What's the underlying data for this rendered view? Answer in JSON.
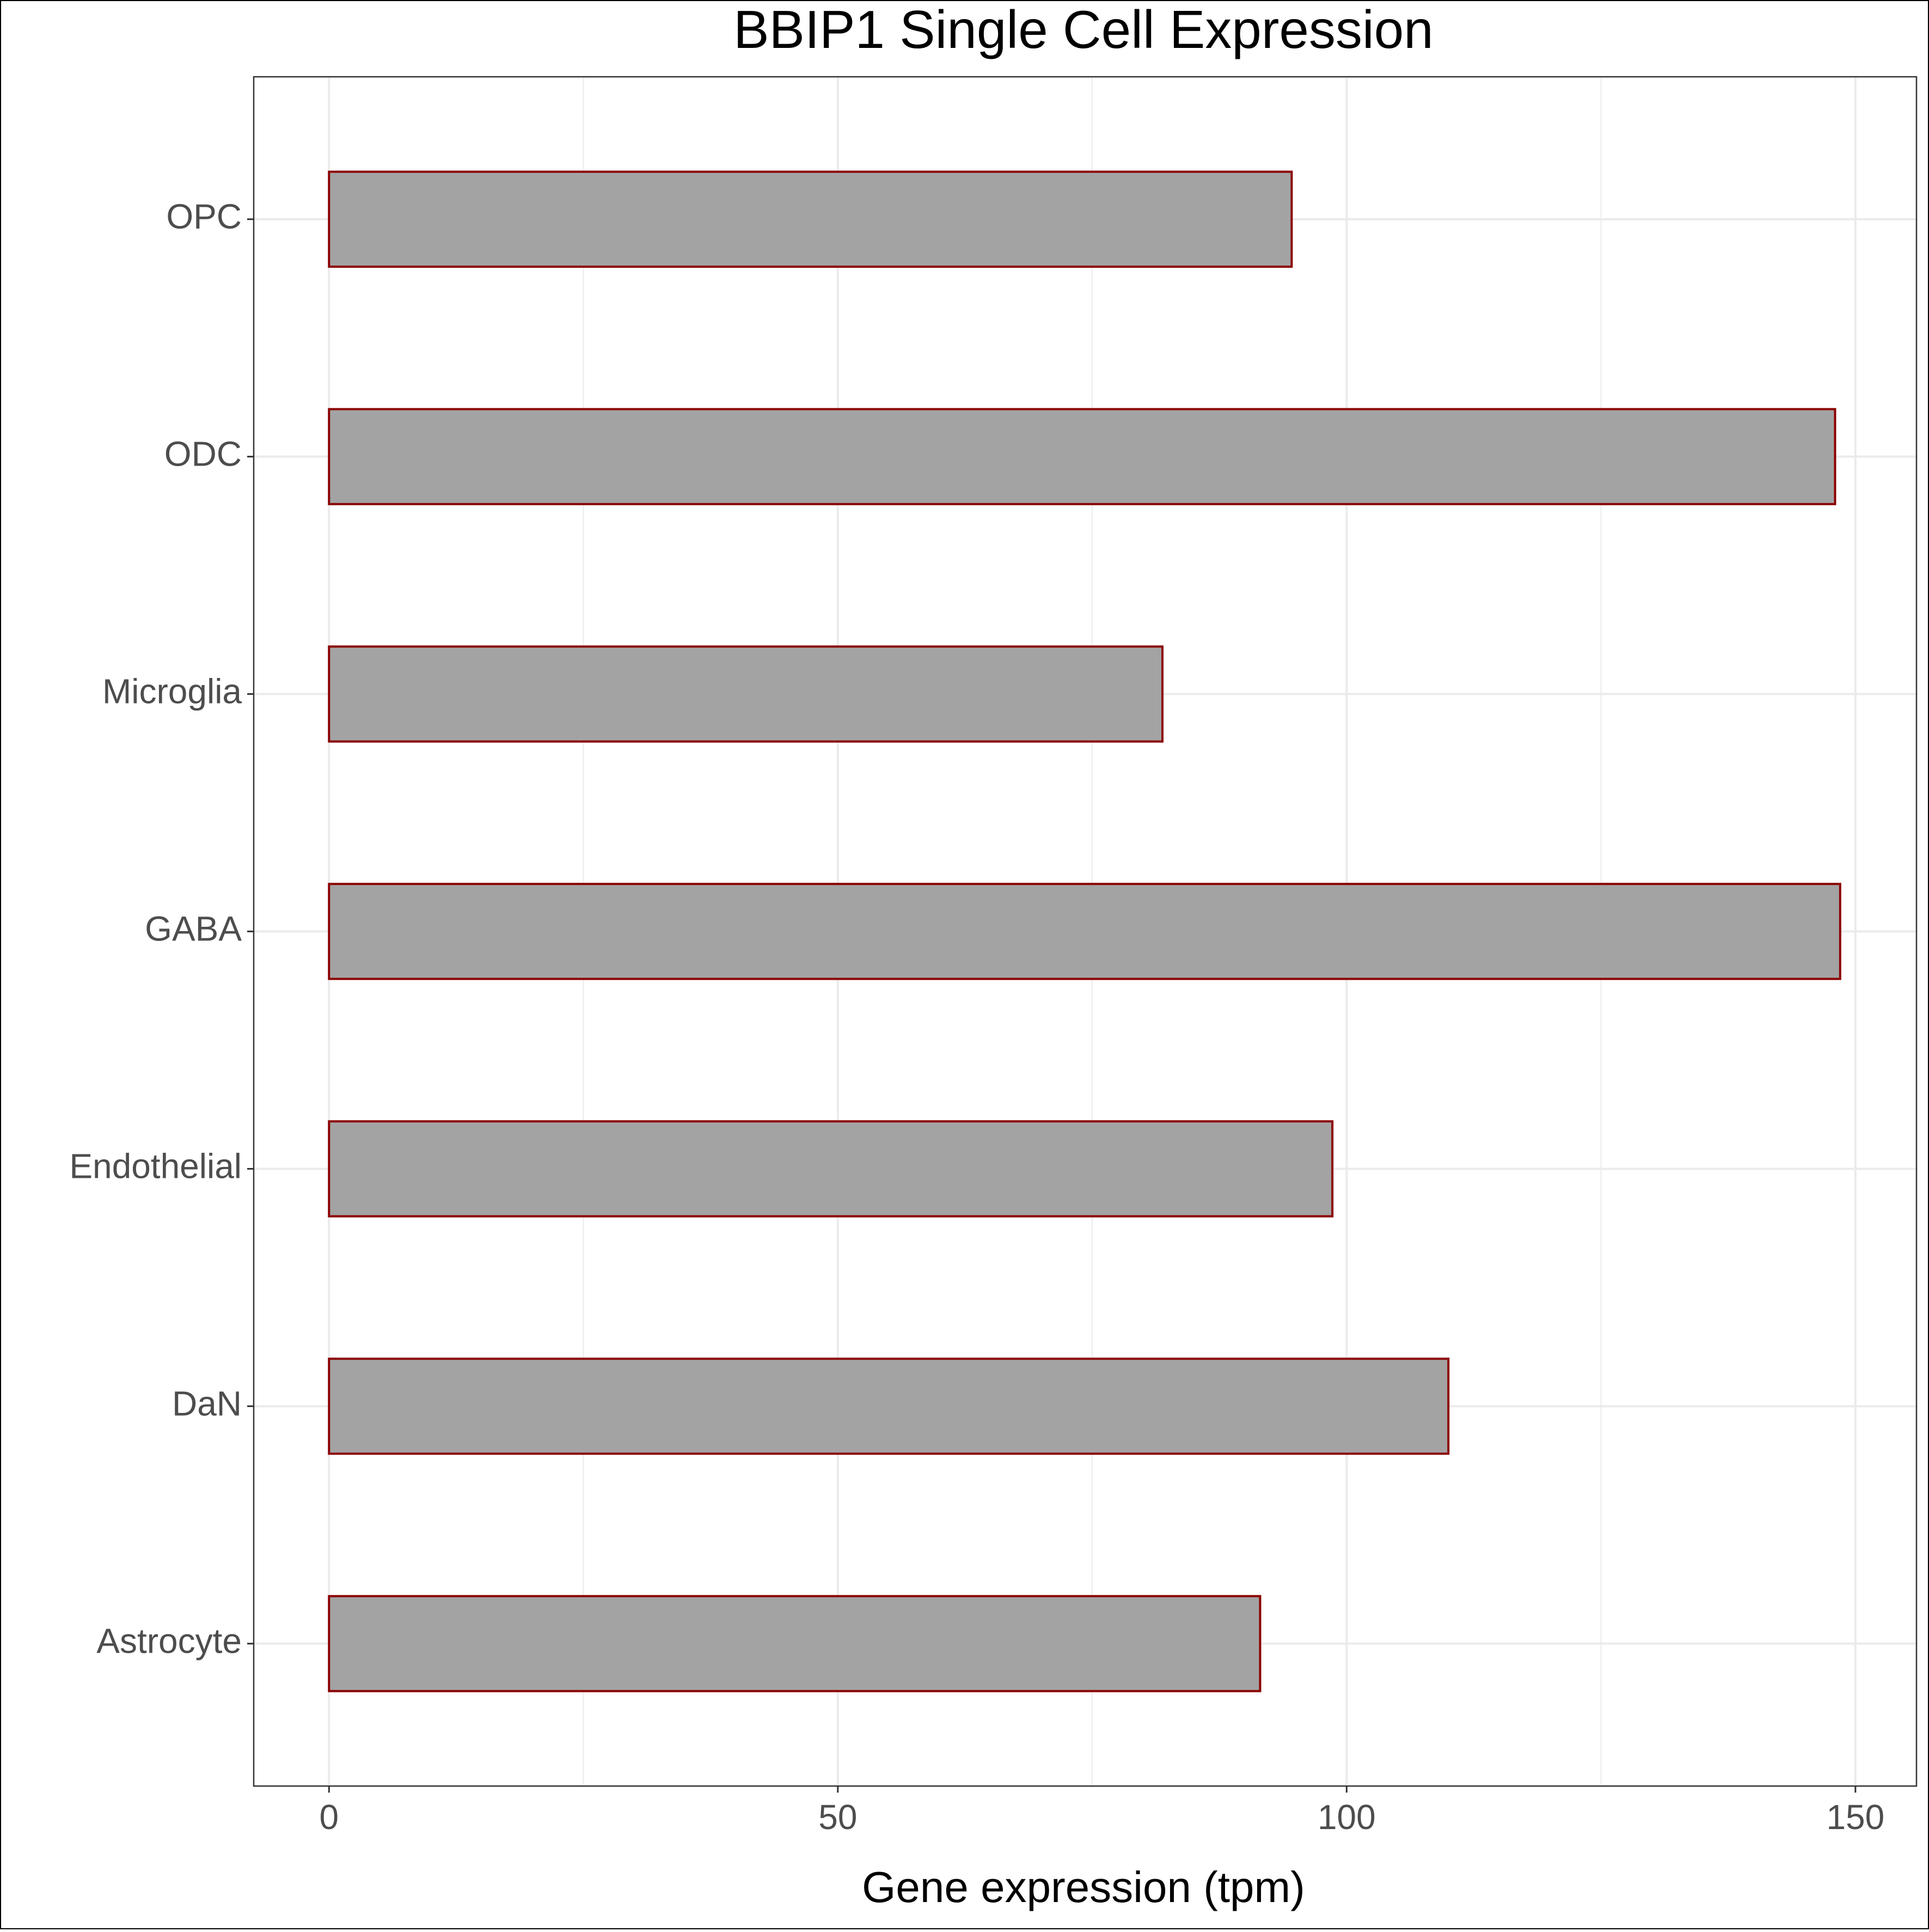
{
  "chart_data": {
    "type": "bar",
    "orientation": "horizontal",
    "title": "BBIP1 Single Cell Expression",
    "xlabel": "Gene expression (tpm)",
    "ylabel": "",
    "categories": [
      "Astrocyte",
      "DaN",
      "Endothelial",
      "GABA",
      "Microglia",
      "ODC",
      "OPC"
    ],
    "values": [
      91.5,
      110.0,
      98.6,
      148.5,
      81.9,
      148.0,
      94.6
    ],
    "xlim": [
      -7.4,
      156.0
    ],
    "xticks": [
      0,
      50,
      100,
      150
    ],
    "xtick_labels": [
      "0",
      "50",
      "100",
      "150"
    ],
    "grid": true,
    "legend": "none",
    "colors": {
      "bar_fill": "#a3a3a3",
      "bar_edge": "#8b0000",
      "grid": "#ebebeb",
      "panel_border": "#333333",
      "axis_text": "#4d4d4d",
      "title_text": "#000000"
    }
  }
}
